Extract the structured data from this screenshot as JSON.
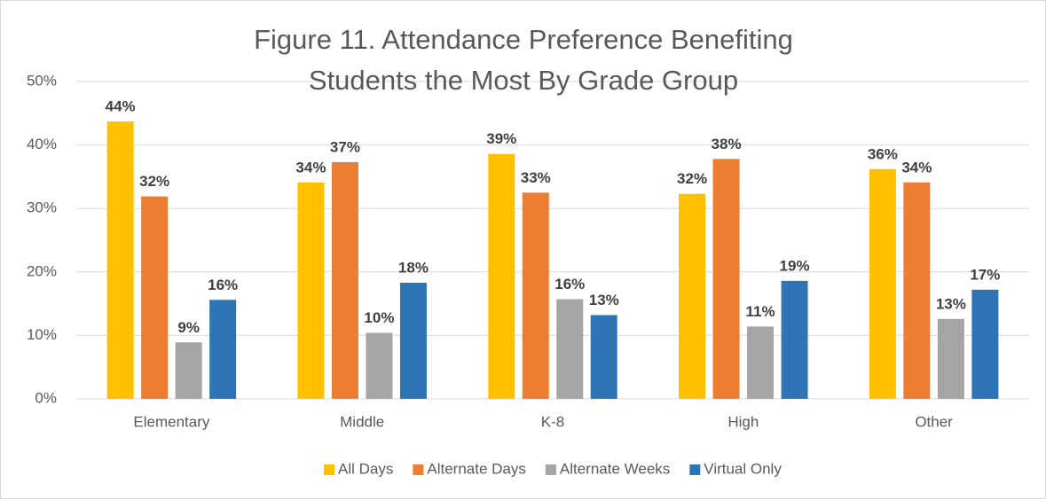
{
  "chart_data": {
    "type": "bar",
    "title": "Figure 11. Attendance Preference Benefiting Students the Most By Grade Group",
    "categories": [
      "Elementary",
      "Middle",
      "K-8",
      "High",
      "Other"
    ],
    "series": [
      {
        "name": "All Days",
        "color": "#FFC000",
        "values": [
          43.7,
          34.1,
          38.6,
          32.3,
          36.2
        ],
        "value_labels": [
          "44%",
          "34%",
          "39%",
          "32%",
          "36%"
        ]
      },
      {
        "name": "Alternate Days",
        "color": "#ED7D31",
        "values": [
          31.9,
          37.3,
          32.5,
          37.8,
          34.1
        ],
        "value_labels": [
          "32%",
          "37%",
          "33%",
          "38%",
          "34%"
        ]
      },
      {
        "name": "Alternate Weeks",
        "color": "#A5A5A5",
        "values": [
          8.9,
          10.4,
          15.7,
          11.4,
          12.6
        ],
        "value_labels": [
          "9%",
          "10%",
          "16%",
          "11%",
          "13%"
        ]
      },
      {
        "name": "Virtual Only",
        "color": "#2E75B6",
        "values": [
          15.6,
          18.3,
          13.2,
          18.6,
          17.2
        ],
        "value_labels": [
          "16%",
          "18%",
          "13%",
          "19%",
          "17%"
        ]
      }
    ],
    "ylim": [
      0,
      50
    ],
    "yticks": [
      {
        "value": 0,
        "label": "0%"
      },
      {
        "value": 10,
        "label": "10%"
      },
      {
        "value": 20,
        "label": "20%"
      },
      {
        "value": 30,
        "label": "30%"
      },
      {
        "value": 40,
        "label": "40%"
      },
      {
        "value": 50,
        "label": "50%"
      }
    ],
    "grid": true,
    "legend": "bottom"
  }
}
